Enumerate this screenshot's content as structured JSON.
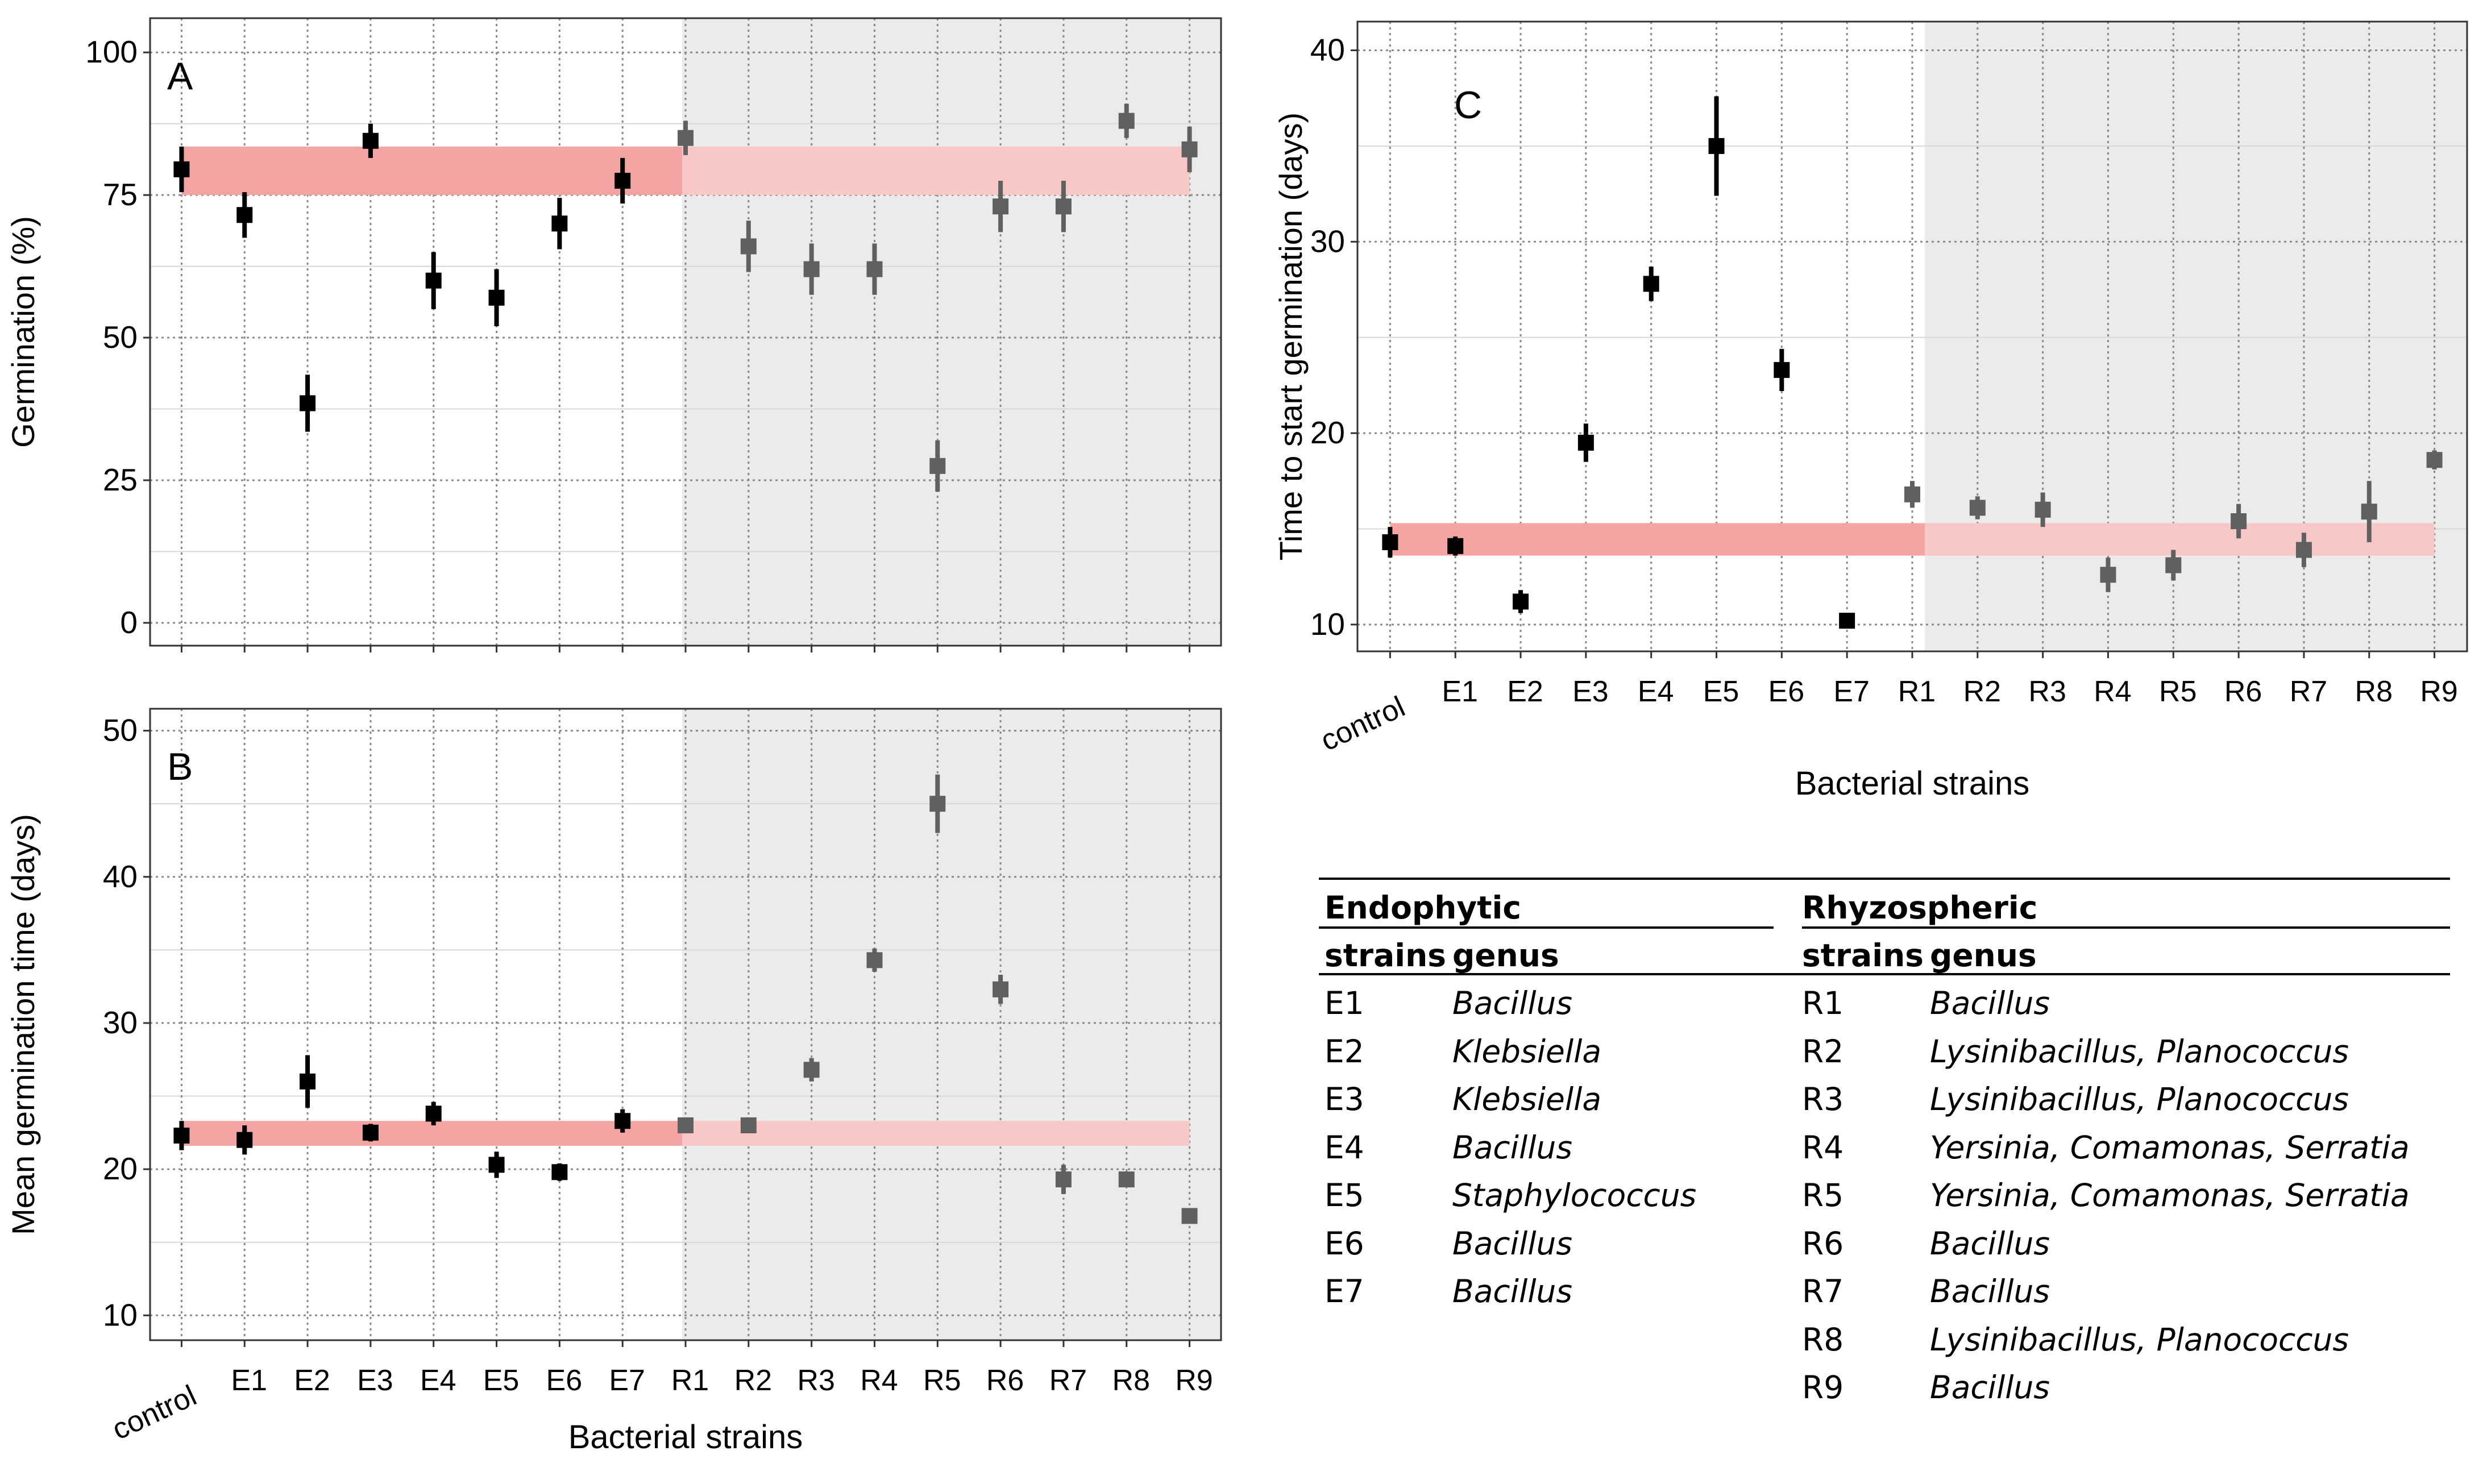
{
  "charts": [
    {
      "id": "A",
      "panel_label": "A",
      "ylabel": "Germination (%)",
      "xlabel": "",
      "ticks_y": [
        0,
        25,
        50,
        75,
        100
      ]
    },
    {
      "id": "B",
      "panel_label": "B",
      "ylabel": "Mean germination time (days)",
      "xlabel": "Bacterial strains",
      "ticks_y": [
        10,
        20,
        30,
        40,
        50
      ]
    },
    {
      "id": "C",
      "panel_label": "C",
      "ylabel": "Time to start germination (days)",
      "xlabel": "Bacterial strains",
      "ticks_y": [
        10,
        20,
        30,
        40
      ]
    }
  ],
  "chart_data": [
    {
      "type": "scatter",
      "panel": "A",
      "categories": [
        "control",
        "E1",
        "E2",
        "E3",
        "E4",
        "E5",
        "E6",
        "E7",
        "R1",
        "R2",
        "R3",
        "R4",
        "R5",
        "R6",
        "R7",
        "R8",
        "R9"
      ],
      "values": [
        79.5,
        71.5,
        38.5,
        84.5,
        60,
        57,
        70,
        77.5,
        85,
        66,
        62,
        62,
        27.5,
        73,
        73,
        88,
        83
      ],
      "error": [
        4,
        4,
        5,
        3,
        5,
        5,
        4.5,
        4,
        3,
        4.5,
        4.5,
        4.5,
        4.5,
        4.5,
        4.5,
        3,
        4
      ],
      "ylim": [
        -4,
        106
      ],
      "ylabel": "Germination (%)",
      "reference_band": [
        75,
        83.5
      ],
      "shaded_group": [
        "R1",
        "R2",
        "R3",
        "R4",
        "R5",
        "R6",
        "R7",
        "R8",
        "R9"
      ],
      "grid": true
    },
    {
      "type": "scatter",
      "panel": "B",
      "categories": [
        "control",
        "E1",
        "E2",
        "E3",
        "E4",
        "E5",
        "E6",
        "E7",
        "R1",
        "R2",
        "R3",
        "R4",
        "R5",
        "R6",
        "R7",
        "R8",
        "R9"
      ],
      "values": [
        22.3,
        22,
        26,
        22.5,
        23.8,
        20.3,
        19.8,
        23.3,
        23,
        23,
        26.8,
        34.3,
        45,
        32.3,
        19.3,
        19.3,
        16.8
      ],
      "error": [
        1,
        1,
        1.8,
        0.6,
        0.8,
        0.9,
        0.6,
        0.8,
        0.5,
        0.5,
        0.8,
        0.8,
        2,
        1,
        1,
        0.5,
        0.5
      ],
      "ylim": [
        8.3,
        51.5
      ],
      "ylabel": "Mean germination time (days)",
      "xlabel": "Bacterial strains",
      "reference_band": [
        21.6,
        23.3
      ],
      "shaded_group": [
        "R1",
        "R2",
        "R3",
        "R4",
        "R5",
        "R6",
        "R7",
        "R8",
        "R9"
      ],
      "grid": true
    },
    {
      "type": "scatter",
      "panel": "C",
      "categories": [
        "control",
        "E1",
        "E2",
        "E3",
        "E4",
        "E5",
        "E6",
        "E7",
        "R1",
        "R2",
        "R3",
        "R4",
        "R5",
        "R6",
        "R7",
        "R8",
        "R9"
      ],
      "values": [
        14.3,
        14.1,
        11.2,
        19.5,
        27.8,
        35,
        23.3,
        10.2,
        16.8,
        16.1,
        16,
        12.6,
        13.1,
        15.4,
        13.9,
        15.9,
        18.6
      ],
      "error": [
        0.8,
        0.5,
        0.6,
        1,
        0.9,
        2.6,
        1.1,
        0.3,
        0.7,
        0.6,
        0.9,
        0.9,
        0.8,
        0.9,
        0.9,
        1.6,
        0.5
      ],
      "ylim": [
        8.6,
        41.5
      ],
      "ylabel": "Time to start germination (days)",
      "xlabel": "Bacterial strains",
      "reference_band": [
        13.6,
        15.3
      ],
      "shaded_group": [
        "R1",
        "R2",
        "R3",
        "R4",
        "R5",
        "R6",
        "R7",
        "R8",
        "R9"
      ],
      "grid": true
    }
  ],
  "table": {
    "headers": {
      "endophytic": "Endophytic",
      "rhyzospheric": "Rhyzospheric",
      "strains": "strains",
      "genus": "genus"
    },
    "endophytic_rows": [
      {
        "strain": "E1",
        "genus": "Bacillus"
      },
      {
        "strain": "E2",
        "genus": "Klebsiella"
      },
      {
        "strain": "E3",
        "genus": "Klebsiella"
      },
      {
        "strain": "E4",
        "genus": "Bacillus"
      },
      {
        "strain": "E5",
        "genus": "Staphylococcus"
      },
      {
        "strain": "E6",
        "genus": "Bacillus"
      },
      {
        "strain": "E7",
        "genus": "Bacillus"
      }
    ],
    "rhyzospheric_rows": [
      {
        "strain": "R1",
        "genus": "Bacillus"
      },
      {
        "strain": "R2",
        "genus": "Lysinibacillus, Planococcus"
      },
      {
        "strain": "R3",
        "genus": "Lysinibacillus, Planococcus"
      },
      {
        "strain": "R4",
        "genus": "Yersinia, Comamonas, Serratia"
      },
      {
        "strain": "R5",
        "genus": "Yersinia, Comamonas, Serratia"
      },
      {
        "strain": "R6",
        "genus": "Bacillus"
      },
      {
        "strain": "R7",
        "genus": "Bacillus"
      },
      {
        "strain": "R8",
        "genus": "Lysinibacillus, Planococcus"
      },
      {
        "strain": "R9",
        "genus": "Bacillus"
      }
    ]
  },
  "colors": {
    "panel_bg": "#ffffff",
    "shaded_bg": "#ebebeb",
    "band": "#f4a4a2",
    "band_light": "#f8c8c6",
    "marker_endophytic": "#000000",
    "marker_rhyzospheric": "#606060",
    "grid": "#8a8a8a",
    "border": "#333333"
  }
}
